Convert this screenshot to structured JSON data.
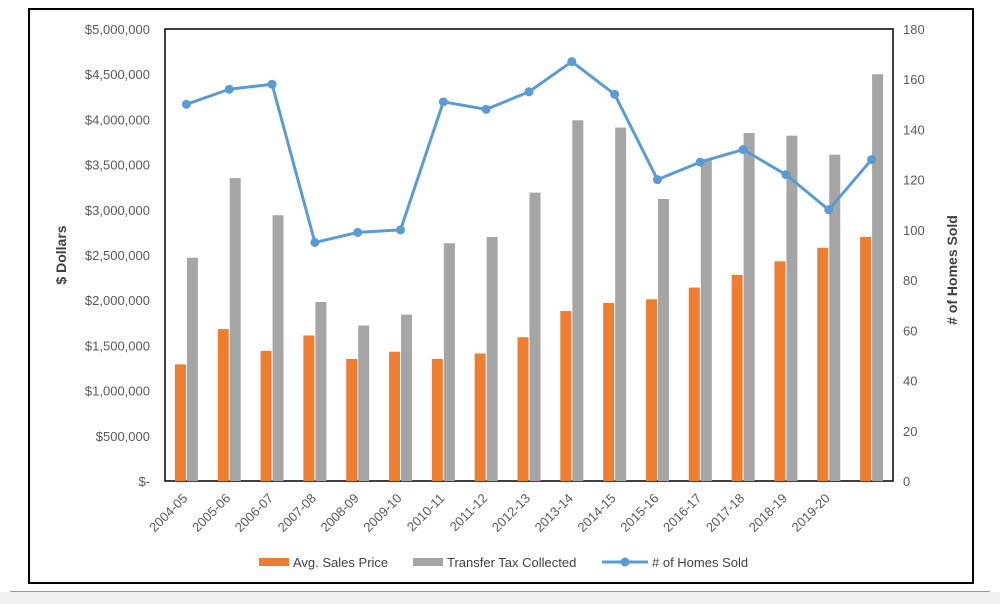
{
  "chart_data": {
    "type": "bar",
    "categories": [
      "2004-05",
      "2005-06",
      "2006-07",
      "2007-08",
      "2008-09",
      "2009-10",
      "2010-11",
      "2011-12",
      "2012-13",
      "2013-14",
      "2014-15",
      "2015-16",
      "2016-17",
      "2017-18",
      "2018-19",
      "2019-20",
      ""
    ],
    "series": [
      {
        "name": "Avg. Sales Price",
        "type": "bar",
        "axis": "left",
        "color": "#ED7D31",
        "values": [
          1290000,
          1680000,
          1440000,
          1610000,
          1350000,
          1430000,
          1350000,
          1410000,
          1590000,
          1880000,
          1970000,
          2010000,
          2140000,
          2280000,
          2430000,
          2580000,
          2700000
        ]
      },
      {
        "name": "Transfer Tax Collected",
        "type": "bar",
        "axis": "left",
        "color": "#A5A5A5",
        "values": [
          2470000,
          3350000,
          2940000,
          1980000,
          1720000,
          1840000,
          2630000,
          2700000,
          3190000,
          3990000,
          3910000,
          3120000,
          3560000,
          3850000,
          3820000,
          3610000,
          4500000
        ]
      },
      {
        "name": "# of Homes Sold",
        "type": "line",
        "axis": "right",
        "color": "#5B9BD5",
        "values": [
          150,
          156,
          158,
          95,
          99,
          100,
          151,
          148,
          155,
          167,
          154,
          120,
          127,
          132,
          122,
          108,
          128
        ]
      }
    ],
    "ylabel": "$ Dollars",
    "y2label": "# of Homes Sold",
    "ylim": [
      0,
      5000000
    ],
    "y2lim": [
      0,
      180
    ],
    "yticks": [
      0,
      500000,
      1000000,
      1500000,
      2000000,
      2500000,
      3000000,
      3500000,
      4000000,
      4500000,
      5000000
    ],
    "ytick_labels": [
      "$-",
      "$500,000",
      "$1,000,000",
      "$1,500,000",
      "$2,000,000",
      "$2,500,000",
      "$3,000,000",
      "$3,500,000",
      "$4,000,000",
      "$4,500,000",
      "$5,000,000"
    ],
    "y2ticks": [
      0,
      20,
      40,
      60,
      80,
      100,
      120,
      140,
      160,
      180
    ],
    "y2tick_labels": [
      "0",
      "20",
      "40",
      "60",
      "80",
      "100",
      "120",
      "140",
      "160",
      "180"
    ],
    "grid": false,
    "legend_position": "bottom"
  }
}
